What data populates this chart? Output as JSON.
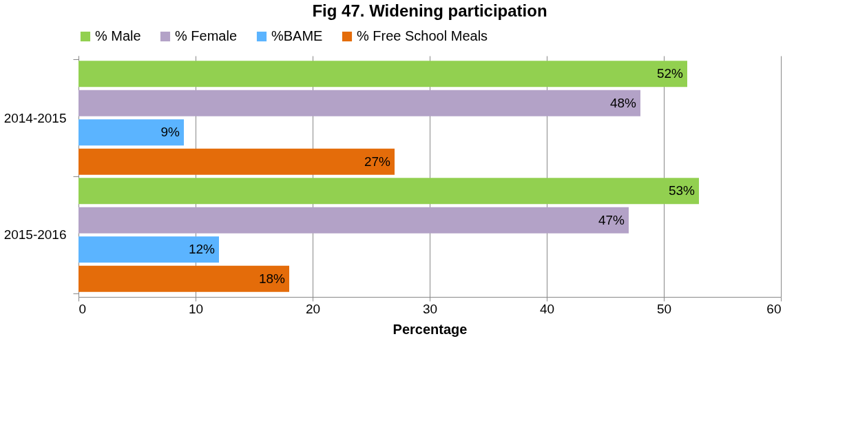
{
  "chart_data": {
    "type": "bar",
    "orientation": "horizontal",
    "title": "Fig 47. Widening participation",
    "xlabel": "Percentage",
    "categories": [
      "2014-2015",
      "2015-2016"
    ],
    "series": [
      {
        "name": "% Male",
        "color": "#92d050",
        "values": [
          52,
          53
        ],
        "value_labels": [
          "52%",
          "53%"
        ]
      },
      {
        "name": "% Female",
        "color": "#b3a2c7",
        "values": [
          48,
          47
        ],
        "value_labels": [
          "48%",
          "47%"
        ]
      },
      {
        "name": "%BAME",
        "color": "#5bb4ff",
        "values": [
          9,
          12
        ],
        "value_labels": [
          "9%",
          "12%"
        ]
      },
      {
        "name": "% Free School Meals",
        "color": "#e46c0a",
        "values": [
          27,
          18
        ],
        "value_labels": [
          "27%",
          "18%"
        ]
      }
    ],
    "xlim": [
      0,
      60
    ],
    "xticks": [
      0,
      10,
      20,
      30,
      40,
      50,
      60
    ],
    "grid": "x",
    "legend": "top"
  }
}
